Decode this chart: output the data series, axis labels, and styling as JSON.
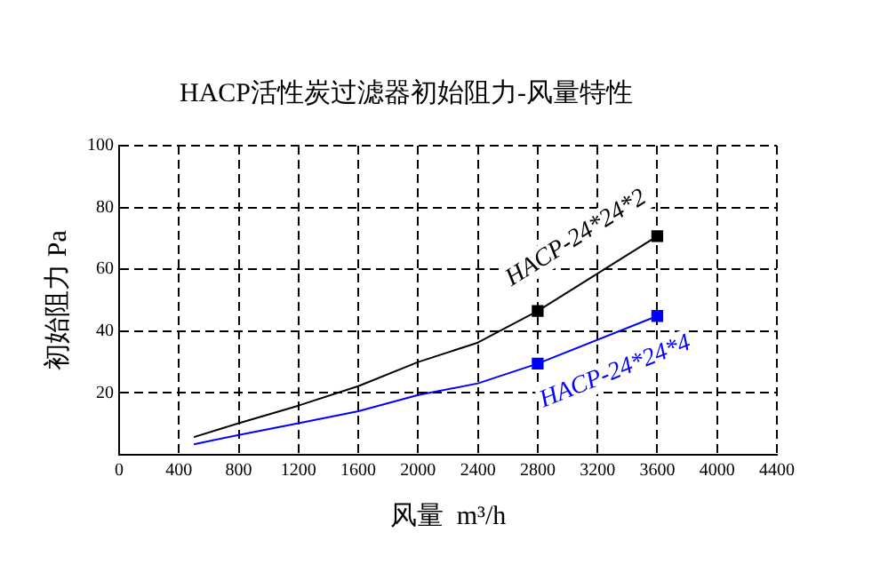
{
  "chart_data": {
    "type": "line",
    "title": "HACP活性炭过滤器初始阻力-风量特性",
    "xlabel": "风量  m³/h",
    "ylabel": "初始阻力 Pa",
    "xlim": [
      0,
      4400
    ],
    "xticks": [
      0,
      400,
      800,
      1200,
      1600,
      2000,
      2400,
      2800,
      3200,
      3600,
      4000,
      4400
    ],
    "ylim": [
      0,
      100
    ],
    "yticks": [
      20,
      40,
      60,
      80,
      100
    ],
    "grid": true,
    "legend": false,
    "series": [
      {
        "name": "HACP-24*24*2",
        "color": "#000000",
        "marker": "none",
        "x": [
          500,
          800,
          1200,
          1600,
          2000,
          2400,
          2800,
          3600
        ],
        "values": [
          5.7,
          10.2,
          15.9,
          22.2,
          30,
          36.3,
          46.5,
          70.7
        ]
      },
      {
        "name": "HACP-24*24*4",
        "color": "#0000ff",
        "marker": "none",
        "x": [
          500,
          800,
          1200,
          1600,
          2000,
          2400,
          2800,
          3600
        ],
        "values": [
          3.4,
          6.4,
          10.2,
          14.1,
          19.3,
          23.1,
          29.5,
          44.9
        ]
      },
      {
        "type": "scatter",
        "color": "#000000",
        "marker": "square",
        "x": [
          2800,
          3600
        ],
        "values": [
          46.5,
          70.7
        ]
      },
      {
        "type": "scatter",
        "color": "#0000ff",
        "marker": "square",
        "x": [
          2800,
          3600
        ],
        "values": [
          29.5,
          44.9
        ]
      }
    ]
  }
}
